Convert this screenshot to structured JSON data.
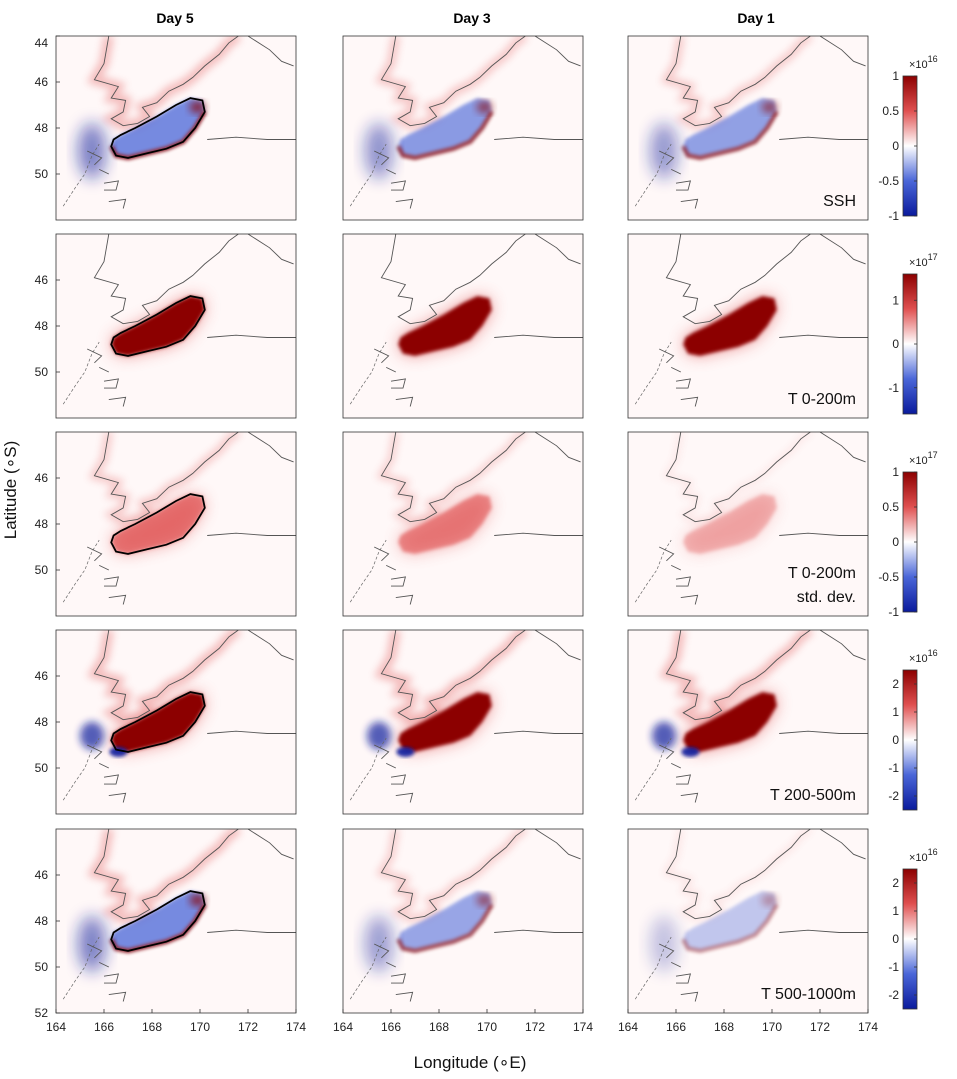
{
  "chart_data": {
    "type": "heatmap",
    "columns": [
      "Day 5",
      "Day 3",
      "Day 1"
    ],
    "xlabel": "Longitude (∘E)",
    "ylabel": "Latitude (∘S)",
    "xlim": [
      164,
      174
    ],
    "ylim": [
      52,
      44
    ],
    "xticks": [
      "164",
      "166",
      "168",
      "170",
      "172",
      "174"
    ],
    "yticks_first_row": [
      "44",
      "46",
      "48",
      "50"
    ],
    "yticks_middle_rows": [
      "46",
      "48",
      "50"
    ],
    "yticks_last_row": [
      "46",
      "48",
      "50",
      "52"
    ],
    "colormap": [
      "#0a1a9c",
      "#4a66d8",
      "#ffffff",
      "#e05050",
      "#8c0000"
    ],
    "rows": [
      {
        "label_lines": [
          "SSH"
        ],
        "colorbar": {
          "exponent_base": "×10",
          "exponent": "16",
          "ticks": [
            "1",
            "0.5",
            "0",
            "-0.5",
            "-1"
          ],
          "range": [
            -1,
            1
          ]
        },
        "pattern": "dipole",
        "intensity": [
          1.0,
          0.85,
          0.8
        ]
      },
      {
        "label_lines": [
          "T 0-200m"
        ],
        "colorbar": {
          "exponent_base": "×10",
          "exponent": "17",
          "ticks": [
            "1",
            "0",
            "-1"
          ],
          "range": [
            -1.6,
            1.6
          ]
        },
        "pattern": "positive",
        "intensity": [
          1.0,
          1.0,
          1.0
        ]
      },
      {
        "label_lines": [
          "T 0-200m",
          "std. dev."
        ],
        "colorbar": {
          "exponent_base": "×10",
          "exponent": "17",
          "ticks": [
            "1",
            "0.5",
            "0",
            "-0.5",
            "-1"
          ],
          "range": [
            -1,
            1
          ]
        },
        "pattern": "positive",
        "intensity": [
          0.8,
          0.7,
          0.4
        ]
      },
      {
        "label_lines": [
          "T 200-500m"
        ],
        "colorbar": {
          "exponent_base": "×10",
          "exponent": "16",
          "ticks": [
            "2",
            "1",
            "0",
            "-1",
            "-2"
          ],
          "range": [
            -2.5,
            2.5
          ]
        },
        "pattern": "positive-with-blue",
        "intensity": [
          1.0,
          1.0,
          1.0
        ]
      },
      {
        "label_lines": [
          "T 500-1000m"
        ],
        "colorbar": {
          "exponent_base": "×10",
          "exponent": "16",
          "ticks": [
            "2",
            "1",
            "0",
            "-1",
            "-2"
          ],
          "range": [
            -2.5,
            2.5
          ]
        },
        "pattern": "dipole-weak",
        "intensity": [
          1.0,
          0.75,
          0.45
        ]
      }
    ],
    "contour_outline_columns": [
      "Day 5"
    ]
  }
}
